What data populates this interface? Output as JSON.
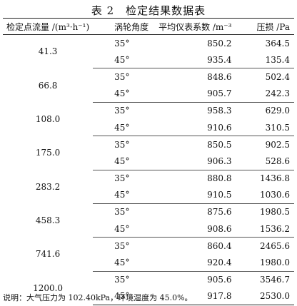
{
  "title": "表 2　检定结果数据表",
  "table": {
    "headers": [
      "检定点流量 /(m³·h⁻¹)",
      "涡轮角度",
      "平均仪表系数 /m⁻³",
      "压损 /Pa"
    ],
    "rows": [
      {
        "flow": "41.3",
        "angle": "35°",
        "coef": "850.2",
        "loss": "364.5"
      },
      {
        "flow": "",
        "angle": "45°",
        "coef": "935.4",
        "loss": "135.4"
      },
      {
        "flow": "66.8",
        "angle": "35°",
        "coef": "848.6",
        "loss": "502.4"
      },
      {
        "flow": "",
        "angle": "45°",
        "coef": "905.7",
        "loss": "242.3"
      },
      {
        "flow": "108.0",
        "angle": "35°",
        "coef": "958.3",
        "loss": "629.0"
      },
      {
        "flow": "",
        "angle": "45°",
        "coef": "910.6",
        "loss": "310.5"
      },
      {
        "flow": "175.0",
        "angle": "35°",
        "coef": "850.5",
        "loss": "902.5"
      },
      {
        "flow": "",
        "angle": "45°",
        "coef": "906.3",
        "loss": "528.6"
      },
      {
        "flow": "283.2",
        "angle": "35°",
        "coef": "880.8",
        "loss": "1436.8"
      },
      {
        "flow": "",
        "angle": "45°",
        "coef": "910.5",
        "loss": "1030.6"
      },
      {
        "flow": "458.3",
        "angle": "35°",
        "coef": "875.6",
        "loss": "1980.5"
      },
      {
        "flow": "",
        "angle": "45°",
        "coef": "908.6",
        "loss": "1536.2"
      },
      {
        "flow": "741.6",
        "angle": "35°",
        "coef": "860.4",
        "loss": "2465.6"
      },
      {
        "flow": "",
        "angle": "45°",
        "coef": "920.4",
        "loss": "1980.0"
      },
      {
        "flow": "1200.0",
        "angle": "35°",
        "coef": "905.6",
        "loss": "3546.7"
      },
      {
        "flow": "",
        "angle": "45°",
        "coef": "917.8",
        "loss": "2530.0"
      }
    ]
  },
  "note": "说明：大气压力为 102.40kPa，环境湿度为 45.0%。"
}
